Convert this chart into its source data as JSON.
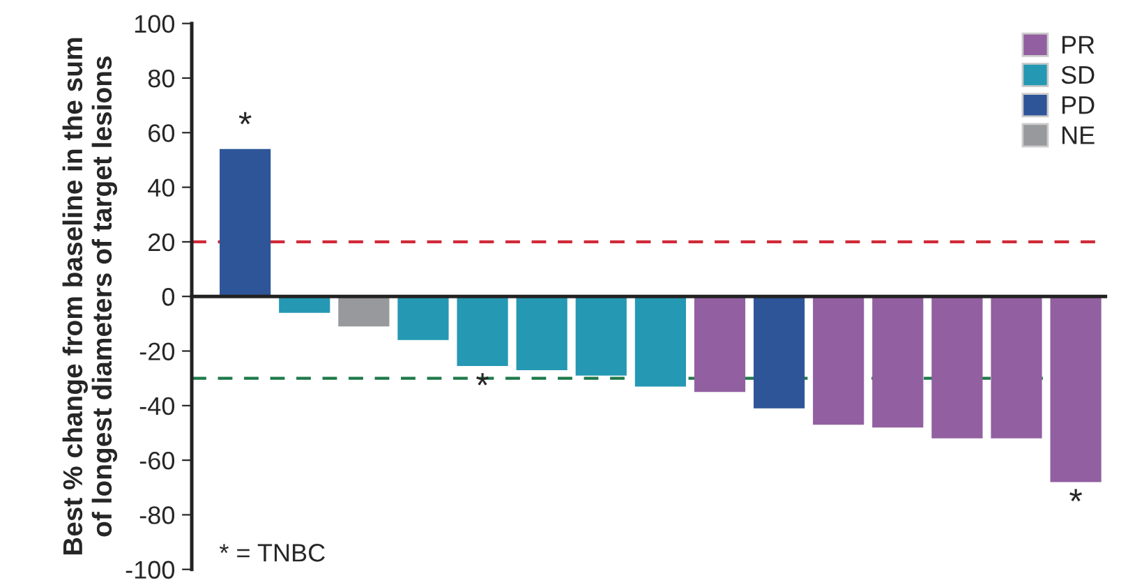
{
  "chart_data": {
    "type": "bar",
    "ylabel": "Best % change from baseline in the sum\nof longest diameters of target lesions",
    "categories": [
      null,
      null,
      null,
      null,
      null,
      null,
      null,
      null,
      null,
      null,
      null,
      null,
      null,
      null,
      null
    ],
    "series": [
      {
        "name": "PR",
        "color": "#925fa1",
        "values": [
          null,
          null,
          null,
          null,
          null,
          null,
          null,
          null,
          -35,
          null,
          -47,
          -48,
          -52,
          -52,
          -68
        ],
        "value_labels": [
          null,
          null,
          null,
          null,
          null,
          null,
          null,
          null,
          null,
          null,
          null,
          null,
          null,
          null,
          "*"
        ]
      },
      {
        "name": "SD",
        "color": "#2598b3",
        "values": [
          null,
          -6,
          null,
          -16,
          -25.5,
          -27,
          -29,
          -33,
          null,
          null,
          null,
          null,
          null,
          null,
          null
        ],
        "value_labels": [
          null,
          null,
          null,
          null,
          "*",
          null,
          null,
          null,
          null,
          null,
          null,
          null,
          null,
          null,
          null
        ]
      },
      {
        "name": "PD",
        "color": "#2e5597",
        "values": [
          54,
          null,
          null,
          null,
          null,
          null,
          null,
          null,
          null,
          -41,
          null,
          null,
          null,
          null,
          null
        ],
        "value_labels": [
          "*",
          null,
          null,
          null,
          null,
          null,
          null,
          null,
          null,
          null,
          null,
          null,
          null,
          null,
          null
        ]
      },
      {
        "name": "NE",
        "color": "#98999c",
        "values": [
          null,
          null,
          -11,
          null,
          null,
          null,
          null,
          null,
          null,
          null,
          null,
          null,
          null,
          null,
          null
        ]
      }
    ],
    "ylim": [
      -100,
      100
    ],
    "yticks": [
      -100,
      -80,
      -60,
      -40,
      -20,
      0,
      20,
      40,
      60,
      80,
      100
    ],
    "ref_lines": [
      {
        "axis": "y",
        "value": 20,
        "color": "#d02a38",
        "line_style": "dashed"
      },
      {
        "axis": "y",
        "value": -30,
        "color": "#1f7a4a",
        "line_style": "dashed"
      }
    ],
    "annotations": [
      "* = TNBC"
    ],
    "legend": "top right",
    "grid": false,
    "tick_labels": "y"
  }
}
